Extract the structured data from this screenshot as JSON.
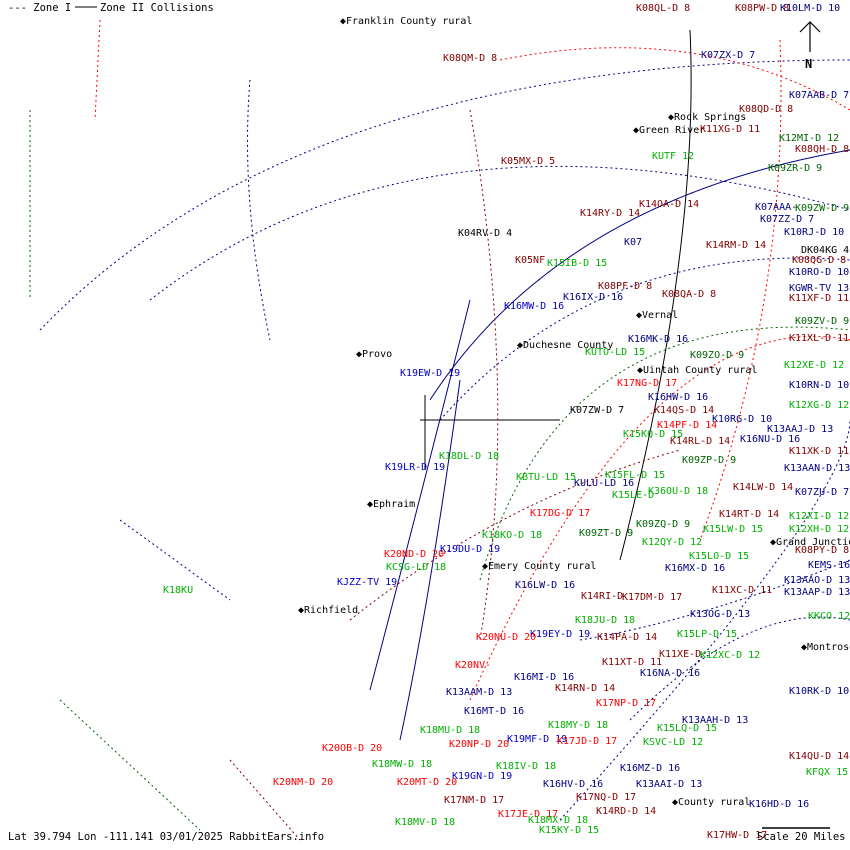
{
  "legend": {
    "zone1": "--- Zone I",
    "zone2": "Zone II Collisions"
  },
  "compass": {
    "label": "N"
  },
  "footer": {
    "status": "Lat 39.794 Lon -111.141 03/01/2025 RabbitEars.info",
    "scale": "Scale 20 Miles"
  },
  "colors": {
    "darkred": "#800000",
    "red": "#ff0000",
    "blue": "#0000c8",
    "navy": "#000080",
    "green": "#00b000",
    "darkgreen": "#006400",
    "black": "#000000"
  },
  "cities": [
    "Franklin County rural",
    "Rock Springs",
    "Green River",
    "Vernal",
    "Duchesne County",
    "Uintah County rural",
    "Provo",
    "Ephraim",
    "Emery County rural",
    "Richfield",
    "Grand Junction",
    "Montrose",
    "County rural"
  ],
  "stations": [
    {
      "t": "K08QL-D 8",
      "c": "darkred"
    },
    {
      "t": "K08PW-D 8",
      "c": "darkred"
    },
    {
      "t": "K10LM-D 10",
      "c": "navy"
    },
    {
      "t": "K08QM-D 8",
      "c": "darkred"
    },
    {
      "t": "K07ZX-D 7",
      "c": "navy"
    },
    {
      "t": "K07AAB-D 7",
      "c": "navy"
    },
    {
      "t": "K08QD-D 8",
      "c": "darkred"
    },
    {
      "t": "K11XG-D 11",
      "c": "darkred"
    },
    {
      "t": "K12MI-D 12",
      "c": "darkgreen"
    },
    {
      "t": "K08QH-D 8",
      "c": "darkred"
    },
    {
      "t": "K05MX-D 5",
      "c": "darkred"
    },
    {
      "t": "KUTF 12",
      "c": "green"
    },
    {
      "t": "K09ZR-D 9",
      "c": "darkgreen"
    },
    {
      "t": "K14RY-D 14",
      "c": "darkred"
    },
    {
      "t": "K14OA-D 14",
      "c": "darkred"
    },
    {
      "t": "K07AAA-",
      "c": "navy"
    },
    {
      "t": "K09ZW-D 9",
      "c": "darkgreen"
    },
    {
      "t": "K07ZZ-D 7",
      "c": "navy"
    },
    {
      "t": "K10RJ-D 10",
      "c": "navy"
    },
    {
      "t": "K04RV-D 4",
      "c": "black"
    },
    {
      "t": "K07",
      "c": "navy"
    },
    {
      "t": "K14RM-D 14",
      "c": "darkred"
    },
    {
      "t": "DK04KG 4",
      "c": "black"
    },
    {
      "t": "K05NF",
      "c": "darkred"
    },
    {
      "t": "K15IB-D 15",
      "c": "green"
    },
    {
      "t": "K08QG-D 8",
      "c": "darkred"
    },
    {
      "t": "K10RO-D 10",
      "c": "navy"
    },
    {
      "t": "KGWR-TV 13",
      "c": "navy"
    },
    {
      "t": "K08PF-D 8",
      "c": "darkred"
    },
    {
      "t": "K08QA-D 8",
      "c": "darkred"
    },
    {
      "t": "K16IX-D 16",
      "c": "navy"
    },
    {
      "t": "K11XF-D 11",
      "c": "darkred"
    },
    {
      "t": "K16MW-D 16",
      "c": "blue"
    },
    {
      "t": "K09ZV-D 9",
      "c": "darkgreen"
    },
    {
      "t": "K11XL-D 11",
      "c": "darkred"
    },
    {
      "t": "K16MK-D 16",
      "c": "navy"
    },
    {
      "t": "K09ZO-D 9",
      "c": "darkgreen"
    },
    {
      "t": "KUTO-LD 15",
      "c": "green"
    },
    {
      "t": "K12XE-D 12",
      "c": "green"
    },
    {
      "t": "K19EW-D 19",
      "c": "blue"
    },
    {
      "t": "K17NG-D 17",
      "c": "red"
    },
    {
      "t": "K10RN-D 10",
      "c": "navy"
    },
    {
      "t": "K16HW-D 16",
      "c": "navy"
    },
    {
      "t": "K12XG-D 12",
      "c": "green"
    },
    {
      "t": "K07ZW-D 7",
      "c": "black"
    },
    {
      "t": "K14QS-D 14",
      "c": "darkred"
    },
    {
      "t": "K14PF-D 14",
      "c": "red"
    },
    {
      "t": "K10RG-D 10",
      "c": "navy"
    },
    {
      "t": "K13AAJ-D 13",
      "c": "navy"
    },
    {
      "t": "K15KQ-D 15",
      "c": "green"
    },
    {
      "t": "K14RL-D 14",
      "c": "darkred"
    },
    {
      "t": "K16NU-D 16",
      "c": "navy"
    },
    {
      "t": "K11XK-D 11",
      "c": "darkred"
    },
    {
      "t": "K18DL-D 18",
      "c": "green"
    },
    {
      "t": "K09ZP-D 9",
      "c": "darkgreen"
    },
    {
      "t": "K13AAN-D 13",
      "c": "navy"
    },
    {
      "t": "K19LR-D 19",
      "c": "blue"
    },
    {
      "t": "KBTU-LD 15",
      "c": "green"
    },
    {
      "t": "K15FL-D 15",
      "c": "green"
    },
    {
      "t": "KULU-LD 16",
      "c": "navy"
    },
    {
      "t": "K14LW-D 14",
      "c": "darkred"
    },
    {
      "t": "K07ZU-D 7",
      "c": "navy"
    },
    {
      "t": "K15LE-D",
      "c": "green"
    },
    {
      "t": "K36OU-D 18",
      "c": "green"
    },
    {
      "t": "K17DG-D 17",
      "c": "red"
    },
    {
      "t": "K14RT-D 14",
      "c": "darkred"
    },
    {
      "t": "K12XI-D 12",
      "c": "green"
    },
    {
      "t": "K09ZQ-D 9",
      "c": "darkgreen"
    },
    {
      "t": "K15LW-D 15",
      "c": "green"
    },
    {
      "t": "K12XH-D 12",
      "c": "green"
    },
    {
      "t": "K18KO-D 18",
      "c": "green"
    },
    {
      "t": "K09ZT-D 9",
      "c": "darkgreen"
    },
    {
      "t": "K12QY-D 12",
      "c": "green"
    },
    {
      "t": "K08PY-D 8",
      "c": "darkred"
    },
    {
      "t": "KCSG-LD 18",
      "c": "green"
    },
    {
      "t": "K20ND-D 20",
      "c": "red"
    },
    {
      "t": "K19DU-D 19",
      "c": "blue"
    },
    {
      "t": "K15LO-D 15",
      "c": "green"
    },
    {
      "t": "KEMS 16",
      "c": "navy"
    },
    {
      "t": "K16MX-D 16",
      "c": "navy"
    },
    {
      "t": "K18KU",
      "c": "green"
    },
    {
      "t": "KJZZ-TV 19",
      "c": "blue"
    },
    {
      "t": "K16LW-D 16",
      "c": "navy"
    },
    {
      "t": "K13AAO-D 13",
      "c": "navy"
    },
    {
      "t": "K11XC-D 11",
      "c": "darkred"
    },
    {
      "t": "K14RI-D",
      "c": "darkred"
    },
    {
      "t": "K17DM-D 17",
      "c": "darkred"
    },
    {
      "t": "K13AAP-D 13",
      "c": "navy"
    },
    {
      "t": "K13OG-D 13",
      "c": "navy"
    },
    {
      "t": "K18JU-D 18",
      "c": "green"
    },
    {
      "t": "KKCO 12",
      "c": "green"
    },
    {
      "t": "K15LP-D 15",
      "c": "green"
    },
    {
      "t": "K14PA-D 14",
      "c": "darkred"
    },
    {
      "t": "K19EY-D 19",
      "c": "blue"
    },
    {
      "t": "K20NU-D 20",
      "c": "red"
    },
    {
      "t": "K11XE-D",
      "c": "darkred"
    },
    {
      "t": "K12XC-D 12",
      "c": "green"
    },
    {
      "t": "K20NV-",
      "c": "red"
    },
    {
      "t": "K11XT-D 11",
      "c": "darkred"
    },
    {
      "t": "K16NA-D 16",
      "c": "navy"
    },
    {
      "t": "K16MI-D 16",
      "c": "navy"
    },
    {
      "t": "K14RN-D 14",
      "c": "darkred"
    },
    {
      "t": "K10RK-D 10",
      "c": "navy"
    },
    {
      "t": "K13AAM-D 13",
      "c": "navy"
    },
    {
      "t": "K17NP-D 17",
      "c": "red"
    },
    {
      "t": "K16MT-D 16",
      "c": "navy"
    },
    {
      "t": "K13AAH-D 13",
      "c": "navy"
    },
    {
      "t": "K18MU-D 18",
      "c": "green"
    },
    {
      "t": "K18MY-D 18",
      "c": "green"
    },
    {
      "t": "K15LQ-D 15",
      "c": "green"
    },
    {
      "t": "K20NP-D 20",
      "c": "red"
    },
    {
      "t": "K19MF-D 19",
      "c": "blue"
    },
    {
      "t": "K17JD-D 17",
      "c": "red"
    },
    {
      "t": "KSVC-LD 12",
      "c": "green"
    },
    {
      "t": "K20OB-D 20",
      "c": "red"
    },
    {
      "t": "K14QU-D 14",
      "c": "darkred"
    },
    {
      "t": "K18MW-D 18",
      "c": "green"
    },
    {
      "t": "K18IV-D 18",
      "c": "green"
    },
    {
      "t": "K16MZ-D 16",
      "c": "navy"
    },
    {
      "t": "KFQX 15",
      "c": "green"
    },
    {
      "t": "K19GN-D 19",
      "c": "blue"
    },
    {
      "t": "K20NM-D 20",
      "c": "red"
    },
    {
      "t": "K20MT-D 20",
      "c": "red"
    },
    {
      "t": "K16HV-D 16",
      "c": "navy"
    },
    {
      "t": "K13AAI-D 13",
      "c": "navy"
    },
    {
      "t": "K17NM-D 17",
      "c": "darkred"
    },
    {
      "t": "K17NQ-D 17",
      "c": "darkred"
    },
    {
      "t": "K16HD-D 16",
      "c": "navy"
    },
    {
      "t": "K14RD-D 14",
      "c": "darkred"
    },
    {
      "t": "K17JE-D 17",
      "c": "red"
    },
    {
      "t": "K18MX-D 18",
      "c": "green"
    },
    {
      "t": "K18MV-D 18",
      "c": "green"
    },
    {
      "t": "K15KY-D 15",
      "c": "green"
    },
    {
      "t": "K17HW-D 17",
      "c": "darkred"
    }
  ]
}
